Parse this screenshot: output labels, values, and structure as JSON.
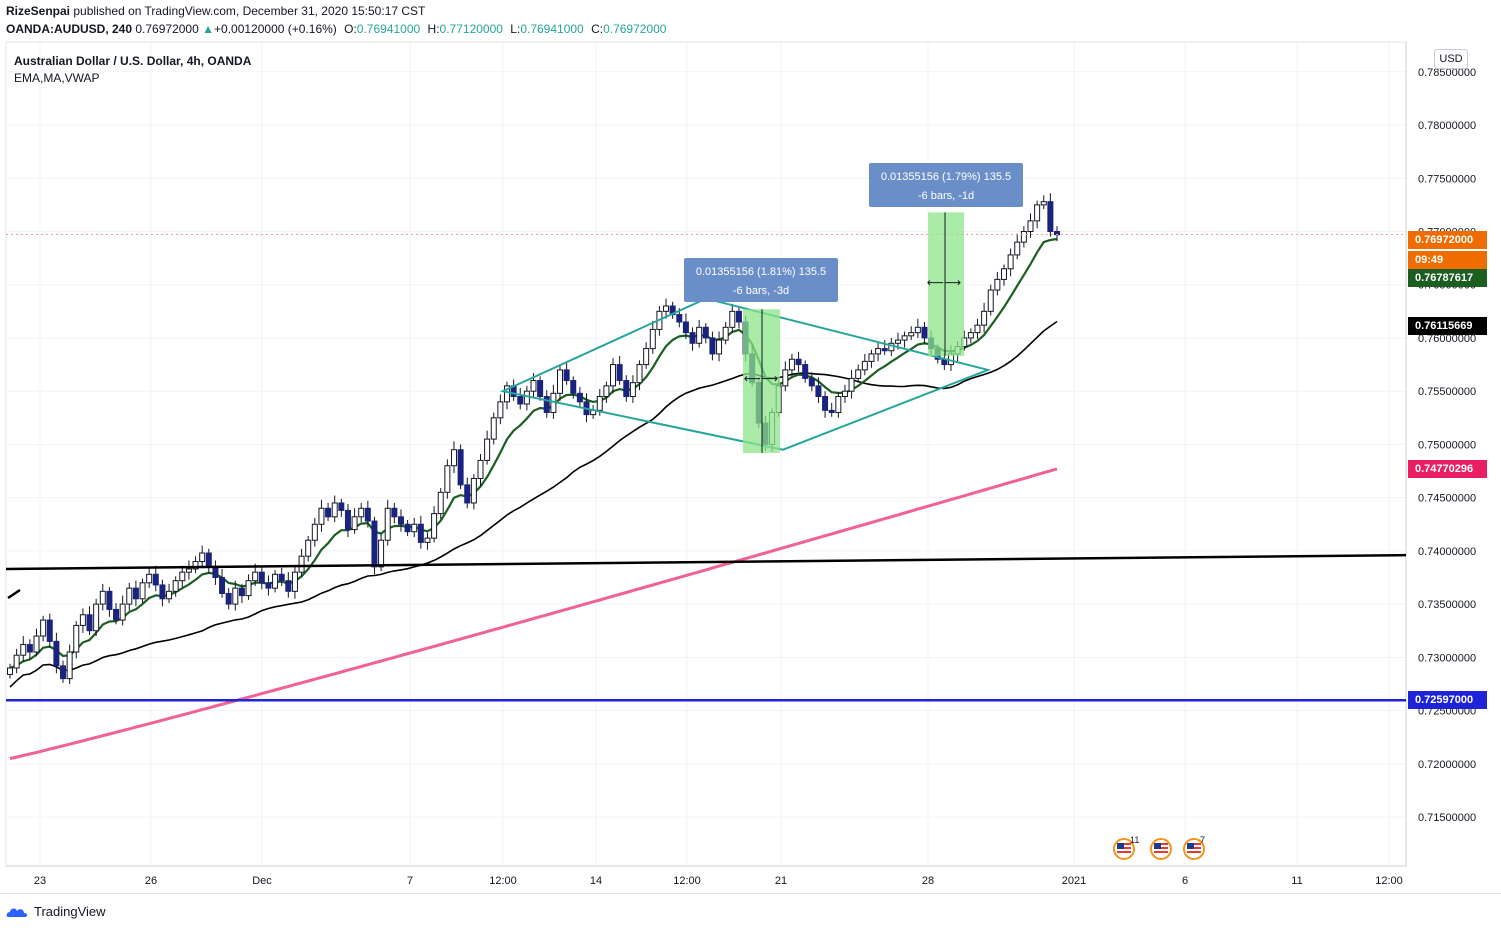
{
  "header": {
    "author": "RizeSenpai",
    "published": "published on TradingView.com, December 31, 2020 15:50:17 CST",
    "symbol": "OANDA:AUDUSD, 240",
    "last": "0.76972000",
    "change": "+0.00120000 (+0.16%)",
    "open_label": "O:",
    "open": "0.76941000",
    "high_label": "H:",
    "high": "0.77120000",
    "low_label": "L:",
    "low": "0.76941000",
    "close_label": "C:",
    "close": "0.76972000"
  },
  "legend": {
    "title": "Australian Dollar / U.S. Dollar, 4h, OANDA",
    "indicators": "EMA,MA,VWAP"
  },
  "currency_button": "USD",
  "footer": {
    "brand": "TradingView"
  },
  "price_labels": [
    {
      "text": "0.76972000",
      "price": 0.76972,
      "color": "#ef6c00"
    },
    {
      "text": "09:49",
      "price": 0.7679,
      "color": "#ef6c00"
    },
    {
      "text": "0.76787617",
      "price": 0.76787617,
      "color": "#1b5e20"
    },
    {
      "text": "0.76115669",
      "price": 0.76115669,
      "color": "#000000"
    },
    {
      "text": "0.74770296",
      "price": 0.74770296,
      "color": "#e91e63"
    },
    {
      "text": "0.72597000",
      "price": 0.72597,
      "color": "#1e22d8"
    }
  ],
  "events": [
    {
      "index": 0,
      "badge": "11"
    },
    {
      "index": 1,
      "badge": ""
    },
    {
      "index": 2,
      "badge": "7"
    }
  ],
  "chart_data": {
    "type": "candlestick",
    "title": "Australian Dollar / U.S. Dollar, 4h, OANDA",
    "ylim": [
      0.7105,
      0.7905
    ],
    "grid": true,
    "y_ticks": [
      "0.78500000",
      "0.78000000",
      "0.77500000",
      "0.77000000",
      "0.76500000",
      "0.76000000",
      "0.75500000",
      "0.75000000",
      "0.74500000",
      "0.74000000",
      "0.73500000",
      "0.73000000",
      "0.72500000",
      "0.72000000",
      "0.71500000"
    ],
    "x_ticks": [
      "23",
      "26",
      "Dec",
      "7",
      "12:00",
      "14",
      "12:00",
      "21",
      "28",
      "2021",
      "6",
      "11",
      "12:00"
    ],
    "current_price": 0.76972,
    "annotations": [
      {
        "type": "measure",
        "line1": "0.01355156 (1.81%) 135.5",
        "line2": "-6 bars, -3d"
      },
      {
        "type": "measure",
        "line1": "0.01355156 (1.79%) 135.5",
        "line2": "-6 bars, -1d"
      }
    ],
    "horizontal_lines": [
      {
        "price": 0.72597,
        "color": "#1e22d8"
      }
    ],
    "trendline": {
      "color": "#000000",
      "from_price": 0.7383,
      "to_price": 0.7396
    },
    "pattern": {
      "type": "diamond",
      "color": "#26a69a",
      "points": [
        [
          0.755
        ],
        [
          0.7637
        ],
        [
          0.757
        ],
        [
          0.7495
        ]
      ]
    },
    "series": [
      {
        "name": "EMA",
        "color": "#1b5e20",
        "last": 0.76787617
      },
      {
        "name": "MA",
        "color": "#000000",
        "last": 0.76115669
      },
      {
        "name": "VWAP",
        "color": "#e91e63",
        "last": 0.74770296
      }
    ],
    "candles_note": "approximate",
    "closes": [
      0.729,
      0.7302,
      0.7312,
      0.7305,
      0.732,
      0.7335,
      0.7315,
      0.7292,
      0.728,
      0.7305,
      0.733,
      0.734,
      0.7325,
      0.735,
      0.7362,
      0.7345,
      0.7335,
      0.735,
      0.7365,
      0.7355,
      0.737,
      0.7378,
      0.7368,
      0.7355,
      0.7362,
      0.7372,
      0.738,
      0.7383,
      0.739,
      0.7398,
      0.7385,
      0.7375,
      0.736,
      0.735,
      0.7365,
      0.7358,
      0.7372,
      0.738,
      0.737,
      0.7365,
      0.7378,
      0.7372,
      0.7362,
      0.738,
      0.7395,
      0.741,
      0.7425,
      0.744,
      0.7432,
      0.7445,
      0.7438,
      0.742,
      0.7432,
      0.744,
      0.7428,
      0.7385,
      0.741,
      0.744,
      0.7432,
      0.7425,
      0.7418,
      0.7425,
      0.7408,
      0.7412,
      0.7435,
      0.7455,
      0.748,
      0.7495,
      0.7462,
      0.7445,
      0.7468,
      0.7485,
      0.7505,
      0.7525,
      0.754,
      0.7555,
      0.7545,
      0.7538,
      0.755,
      0.756,
      0.7545,
      0.753,
      0.7548,
      0.757,
      0.756,
      0.7548,
      0.754,
      0.7528,
      0.7532,
      0.7545,
      0.7555,
      0.7575,
      0.756,
      0.7545,
      0.7558,
      0.7575,
      0.759,
      0.7608,
      0.7625,
      0.763,
      0.7622,
      0.7615,
      0.7605,
      0.7595,
      0.761,
      0.76,
      0.7585,
      0.7598,
      0.761,
      0.7625,
      0.7615,
      0.7585,
      0.7558,
      0.752,
      0.75,
      0.753,
      0.7555,
      0.757,
      0.758,
      0.7575,
      0.7562,
      0.7555,
      0.7545,
      0.7532,
      0.753,
      0.7545,
      0.755,
      0.7562,
      0.757,
      0.7578,
      0.7585,
      0.759,
      0.7588,
      0.7595,
      0.7598,
      0.7602,
      0.7605,
      0.761,
      0.76,
      0.759,
      0.758,
      0.7575,
      0.7585,
      0.7592,
      0.76,
      0.7605,
      0.7612,
      0.7625,
      0.7645,
      0.7655,
      0.7665,
      0.7678,
      0.769,
      0.77,
      0.771,
      0.7725,
      0.7728,
      0.77,
      0.7697
    ]
  }
}
